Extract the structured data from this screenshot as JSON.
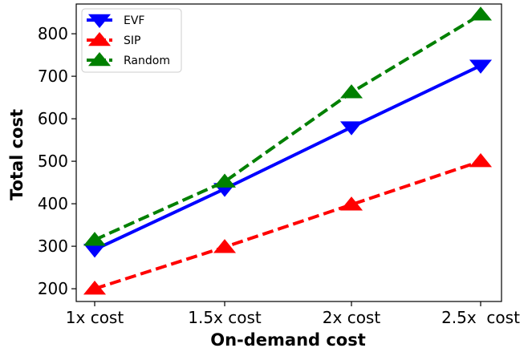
{
  "chart_data": {
    "type": "line",
    "title": "",
    "xlabel": "On-demand cost",
    "ylabel": "Total cost",
    "categories": [
      "1x cost",
      "1.5x cost",
      "2x cost",
      "2.5x  cost"
    ],
    "yticks": [
      200,
      300,
      400,
      500,
      600,
      700,
      800
    ],
    "ylim": [
      170,
      870
    ],
    "grid": false,
    "legend_position": "top-left",
    "series": [
      {
        "name": "EVF",
        "values": [
          292,
          435,
          580,
          725
        ],
        "color": "#0000ff",
        "dash": "solid",
        "marker": "triangle-down"
      },
      {
        "name": "SIP",
        "values": [
          200,
          298,
          398,
          500
        ],
        "color": "#ff0000",
        "dash": "dashed",
        "marker": "triangle-up"
      },
      {
        "name": "Random",
        "values": [
          315,
          452,
          662,
          845
        ],
        "color": "#008000",
        "dash": "dashed",
        "marker": "triangle-up"
      }
    ]
  }
}
